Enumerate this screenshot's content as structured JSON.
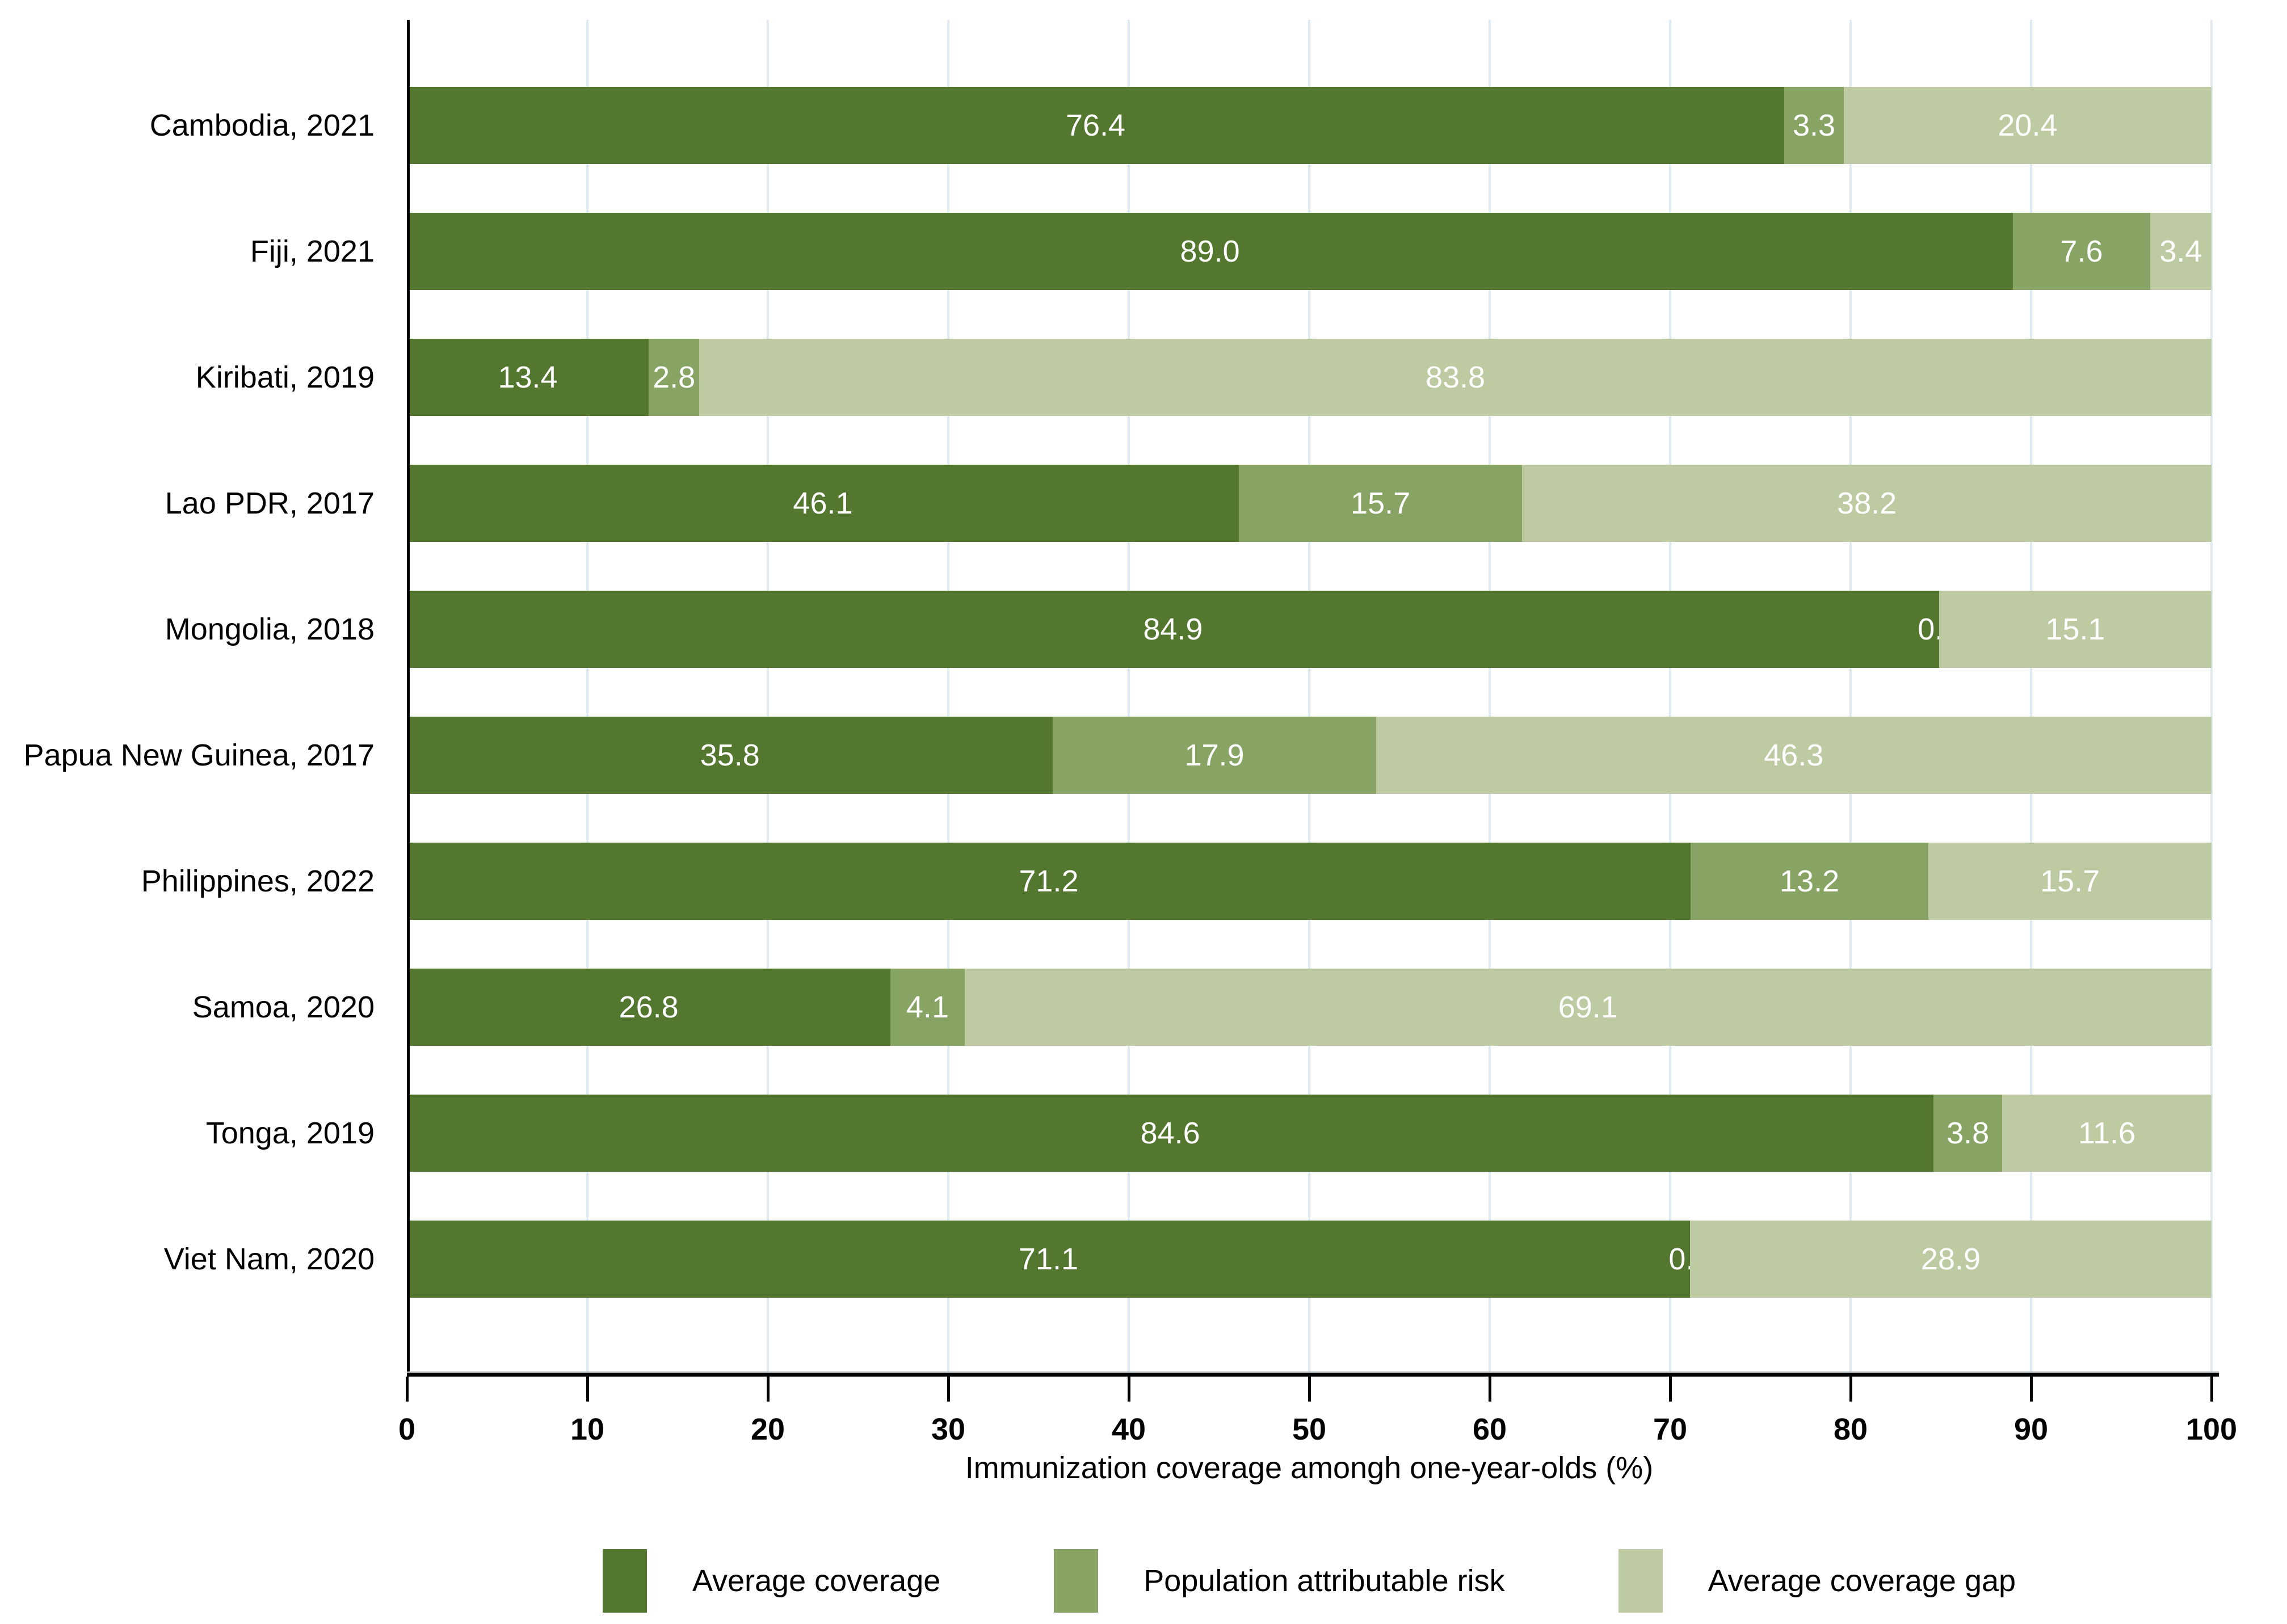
{
  "chart_data": {
    "type": "bar",
    "orientation": "horizontal-stacked",
    "title": "",
    "xlabel": "Immunization coverage amongh one-year-olds (%)",
    "xlim": [
      0,
      100
    ],
    "x_ticks": [
      0,
      10,
      20,
      30,
      40,
      50,
      60,
      70,
      80,
      90,
      100
    ],
    "grid": true,
    "legend_position": "bottom",
    "value_label_decimals": 1,
    "categories": [
      "Cambodia, 2021",
      "Fiji, 2021",
      "Kiribati, 2019",
      "Lao PDR, 2017",
      "Mongolia, 2018",
      "Papua New Guinea, 2017",
      "Philippines, 2022",
      "Samoa, 2020",
      "Tonga, 2019",
      "Viet Nam, 2020"
    ],
    "series": [
      {
        "name": "Average coverage",
        "color": "#53772F",
        "values": [
          76.4,
          89.0,
          13.4,
          46.1,
          84.9,
          35.8,
          71.2,
          26.8,
          84.6,
          71.1
        ]
      },
      {
        "name": "Population attributable risk",
        "color": "#88A465",
        "values": [
          3.3,
          7.6,
          2.8,
          15.7,
          0.0,
          17.9,
          13.2,
          4.1,
          3.8,
          0.0
        ]
      },
      {
        "name": "Average coverage gap",
        "color": "#BECAA2",
        "values": [
          20.4,
          3.4,
          83.8,
          38.2,
          15.1,
          46.3,
          15.7,
          69.1,
          11.6,
          28.9
        ]
      }
    ]
  },
  "colors": {
    "background": "#FFFFFF",
    "gridline": "#DEEBF2",
    "axis": "#000000",
    "value_label": "#FFFFFF",
    "text": "#000000"
  }
}
